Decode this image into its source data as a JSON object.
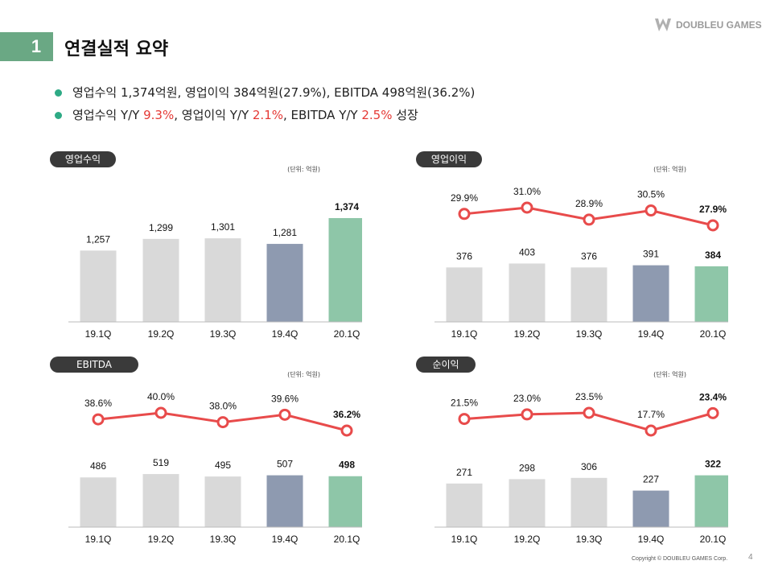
{
  "section": {
    "number": "1",
    "title": "연결실적 요약"
  },
  "logo": {
    "text": "DOUBLEU GAMES"
  },
  "bullets": [
    {
      "segments": [
        {
          "text": "영업수익 1,374억원, 영업이익 384억원(27.9%), EBITDA 498억원(36.2%)",
          "hl": false
        }
      ]
    },
    {
      "segments": [
        {
          "text": "영업수익 Y/Y ",
          "hl": false
        },
        {
          "text": "9.3%",
          "hl": true
        },
        {
          "text": ", 영업이익 Y/Y ",
          "hl": false
        },
        {
          "text": "2.1%",
          "hl": true
        },
        {
          "text": ", EBITDA Y/Y ",
          "hl": false
        },
        {
          "text": "2.5%",
          "hl": true
        },
        {
          "text": " 성장",
          "hl": false
        }
      ]
    }
  ],
  "colors": {
    "grey": "#d9d9d9",
    "navy": "#8e9ab0",
    "green": "#8ec6a8",
    "red": "#e84b4b",
    "pill": "#3a3a3a",
    "accent": "#6aa884"
  },
  "chart_data": [
    {
      "type": "bar",
      "title": "영업수익",
      "unit": "(단위: 억원)",
      "categories": [
        "19.1Q",
        "19.2Q",
        "19.3Q",
        "19.4Q",
        "20.1Q"
      ],
      "values": [
        1257,
        1299,
        1301,
        1281,
        1374
      ],
      "value_labels": [
        "1,257",
        "1,299",
        "1,301",
        "1,281",
        "1,374"
      ],
      "bar_colors": [
        "grey",
        "grey",
        "grey",
        "navy",
        "green"
      ],
      "ylim": [
        1000,
        1400
      ]
    },
    {
      "type": "bar+line",
      "title": "영업이익",
      "unit": "(단위: 억원)",
      "categories": [
        "19.1Q",
        "19.2Q",
        "19.3Q",
        "19.4Q",
        "20.1Q"
      ],
      "values": [
        376,
        403,
        376,
        391,
        384
      ],
      "value_labels": [
        "376",
        "403",
        "376",
        "391",
        "384"
      ],
      "margins": [
        29.9,
        31.0,
        28.9,
        30.5,
        27.9
      ],
      "margin_labels": [
        "29.9%",
        "31.0%",
        "28.9%",
        "30.5%",
        "27.9%"
      ],
      "bar_colors": [
        "grey",
        "grey",
        "grey",
        "navy",
        "green"
      ],
      "ylim": [
        0,
        600
      ]
    },
    {
      "type": "bar+line",
      "title": "EBITDA",
      "unit": "(단위: 억원)",
      "categories": [
        "19.1Q",
        "19.2Q",
        "19.3Q",
        "19.4Q",
        "20.1Q"
      ],
      "values": [
        486,
        519,
        495,
        507,
        498
      ],
      "value_labels": [
        "486",
        "519",
        "495",
        "507",
        "498"
      ],
      "margins": [
        38.6,
        40.0,
        38.0,
        39.6,
        36.2
      ],
      "margin_labels": [
        "38.6%",
        "40.0%",
        "38.0%",
        "39.6%",
        "36.2%"
      ],
      "bar_colors": [
        "grey",
        "grey",
        "grey",
        "navy",
        "green"
      ],
      "ylim": [
        0,
        850
      ]
    },
    {
      "type": "bar+line",
      "title": "순이익",
      "unit": "(단위: 억원)",
      "categories": [
        "19.1Q",
        "19.2Q",
        "19.3Q",
        "19.4Q",
        "20.1Q"
      ],
      "values": [
        271,
        298,
        306,
        227,
        322
      ],
      "value_labels": [
        "271",
        "298",
        "306",
        "227",
        "322"
      ],
      "margins": [
        21.5,
        23.0,
        23.5,
        17.7,
        23.4
      ],
      "margin_labels": [
        "21.5%",
        "23.0%",
        "23.5%",
        "17.7%",
        "23.4%"
      ],
      "bar_colors": [
        "grey",
        "grey",
        "grey",
        "navy",
        "green"
      ],
      "ylim": [
        0,
        540
      ]
    }
  ],
  "footer": {
    "copyright": "Copyright © DOUBLEU GAMES Corp.",
    "page": "4"
  }
}
